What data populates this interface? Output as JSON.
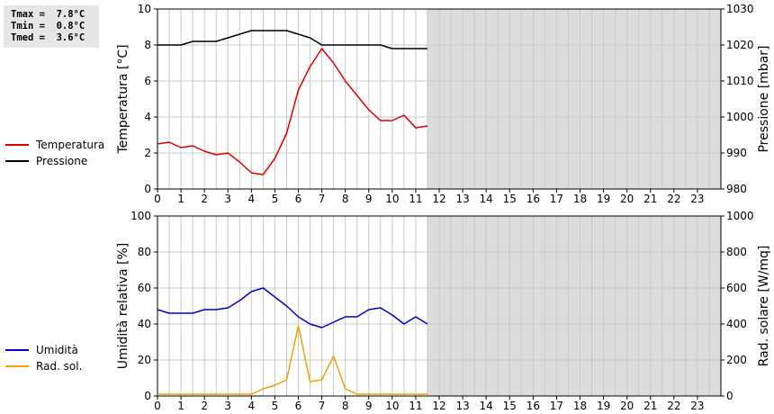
{
  "stats": {
    "lines": [
      "Tmax =  7.8°C",
      "Tmin =  0.8°C",
      "Tmed =  3.6°C"
    ]
  },
  "chart_data": [
    {
      "type": "line",
      "ylabel_left": "Temperatura [°C]",
      "ylabel_right": "Pressione [mbar]",
      "xlim": [
        0,
        24
      ],
      "xticks": [
        "0",
        "1",
        "2",
        "3",
        "4",
        "5",
        "6",
        "7",
        "8",
        "9",
        "10",
        "11",
        "12",
        "13",
        "14",
        "15",
        "16",
        "17",
        "18",
        "19",
        "20",
        "21",
        "22",
        "23"
      ],
      "ylim_left": [
        0,
        10
      ],
      "yticks_left": [
        "0",
        "2",
        "4",
        "6",
        "8",
        "10"
      ],
      "ylim_right": [
        980,
        1030
      ],
      "yticks_right": [
        "980",
        "990",
        "1000",
        "1010",
        "1020",
        "1030"
      ],
      "grid": true,
      "no_data_from": 11.5,
      "series": [
        {
          "name": "Temperatura",
          "color": "#dd0000",
          "axis": "left",
          "x": [
            0,
            0.5,
            1,
            1.5,
            2,
            2.5,
            3,
            3.5,
            4,
            4.5,
            5,
            5.5,
            6,
            6.5,
            7,
            7.5,
            8,
            8.5,
            9,
            9.5,
            10,
            10.5,
            11,
            11.5
          ],
          "values": [
            2.5,
            2.6,
            2.3,
            2.4,
            2.1,
            1.9,
            2.0,
            1.5,
            0.9,
            0.8,
            1.7,
            3.1,
            5.5,
            6.8,
            7.8,
            7.0,
            6.0,
            5.2,
            4.4,
            3.8,
            3.8,
            4.1,
            3.4,
            3.5
          ]
        },
        {
          "name": "Pressione",
          "color": "#000000",
          "axis": "right",
          "x": [
            0,
            0.5,
            1,
            1.5,
            2,
            2.5,
            3,
            3.5,
            4,
            4.5,
            5,
            5.5,
            6,
            6.5,
            7,
            7.5,
            8,
            8.5,
            9,
            9.5,
            10,
            10.5,
            11,
            11.5
          ],
          "values": [
            1020,
            1020,
            1020,
            1021,
            1021,
            1021,
            1022,
            1023,
            1024,
            1024,
            1024,
            1024,
            1023,
            1022,
            1020,
            1020,
            1020,
            1020,
            1020,
            1020,
            1019,
            1019,
            1019,
            1019
          ]
        }
      ]
    },
    {
      "type": "line",
      "ylabel_left": "Umidità relativa [%]",
      "ylabel_right": "Rad. solare [W/mq]",
      "xlim": [
        0,
        24
      ],
      "xticks": [
        "0",
        "1",
        "2",
        "3",
        "4",
        "5",
        "6",
        "7",
        "8",
        "9",
        "10",
        "11",
        "12",
        "13",
        "14",
        "15",
        "16",
        "17",
        "18",
        "19",
        "20",
        "21",
        "22",
        "23"
      ],
      "ylim_left": [
        0,
        100
      ],
      "yticks_left": [
        "0",
        "20",
        "40",
        "60",
        "80",
        "100"
      ],
      "ylim_right": [
        0,
        1000
      ],
      "yticks_right": [
        "0",
        "200",
        "400",
        "600",
        "800",
        "1000"
      ],
      "grid": true,
      "no_data_from": 11.5,
      "series": [
        {
          "name": "Umidità",
          "color": "#0000cc",
          "axis": "left",
          "x": [
            0,
            0.5,
            1,
            1.5,
            2,
            2.5,
            3,
            3.5,
            4,
            4.5,
            5,
            5.5,
            6,
            6.5,
            7,
            7.5,
            8,
            8.5,
            9,
            9.5,
            10,
            10.5,
            11,
            11.5
          ],
          "values": [
            48,
            46,
            46,
            46,
            48,
            48,
            49,
            53,
            58,
            60,
            55,
            50,
            44,
            40,
            38,
            41,
            44,
            44,
            48,
            49,
            45,
            40,
            44,
            40
          ]
        },
        {
          "name": "Rad. sol.",
          "color": "#f0a000",
          "axis": "right",
          "x": [
            0,
            0.5,
            1,
            1.5,
            2,
            2.5,
            3,
            3.5,
            4,
            4.5,
            5,
            5.5,
            6,
            6.5,
            7,
            7.5,
            8,
            8.5,
            9,
            9.5,
            10,
            10.5,
            11,
            11.5
          ],
          "values": [
            10,
            10,
            10,
            10,
            10,
            10,
            10,
            10,
            10,
            40,
            60,
            90,
            390,
            80,
            90,
            220,
            40,
            10,
            10,
            10,
            10,
            10,
            10,
            10
          ]
        }
      ]
    }
  ]
}
